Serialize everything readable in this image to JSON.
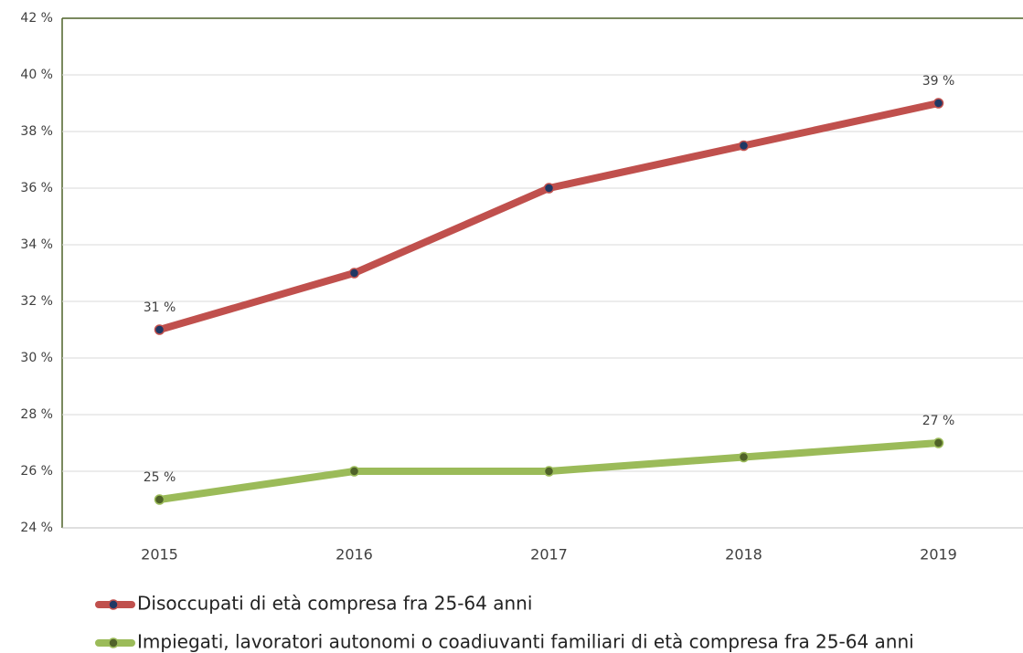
{
  "chart_data": {
    "type": "line",
    "categories": [
      "2015",
      "2016",
      "2017",
      "2018",
      "2019"
    ],
    "series": [
      {
        "name": "Disoccupati di età compresa fra 25-64 anni",
        "color": "#c0504d",
        "marker_color": "#1f3864",
        "values": [
          31,
          33,
          36,
          37.5,
          39
        ],
        "value_labels": [
          "31 %",
          null,
          null,
          null,
          "39 %"
        ]
      },
      {
        "name": "Impiegati, lavoratori autonomi o coadiuvanti familiari di età compresa fra 25-64 anni",
        "color": "#9bbb59",
        "marker_color": "#4f6228",
        "values": [
          25,
          26,
          26,
          26.5,
          27
        ],
        "value_labels": [
          "25 %",
          null,
          null,
          null,
          "27 %"
        ]
      }
    ],
    "ylim": [
      24,
      42
    ],
    "yticks": [
      {
        "value": 24,
        "label": "24 %"
      },
      {
        "value": 26,
        "label": "26 %"
      },
      {
        "value": 28,
        "label": "28 %"
      },
      {
        "value": 30,
        "label": "30 %"
      },
      {
        "value": 32,
        "label": "32 %"
      },
      {
        "value": 34,
        "label": "34 %"
      },
      {
        "value": 36,
        "label": "36 %"
      },
      {
        "value": 38,
        "label": "38 %"
      },
      {
        "value": 40,
        "label": "40 %"
      },
      {
        "value": 42,
        "label": "42 %"
      }
    ],
    "grid": true,
    "legend": "bottom"
  }
}
